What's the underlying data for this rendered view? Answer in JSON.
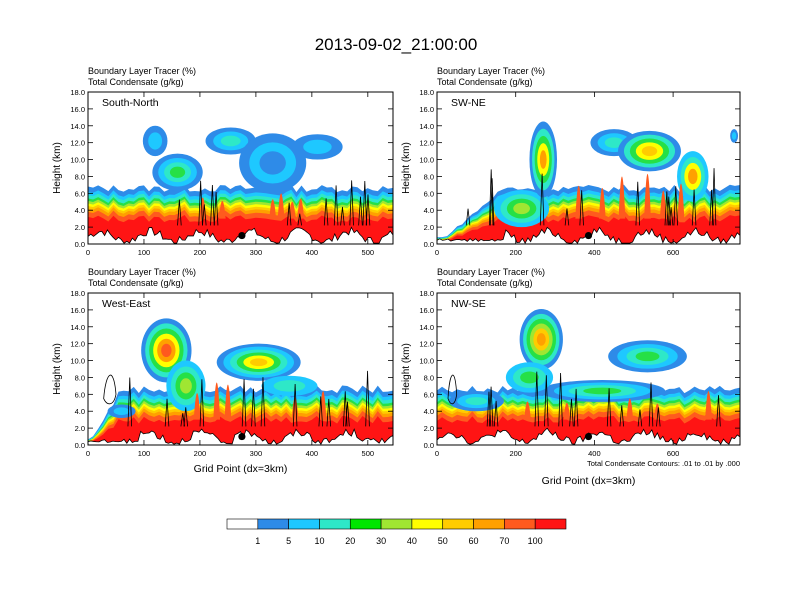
{
  "page_title": "2013-09-02_21:00:00",
  "legend": {
    "colors": [
      "#ffffff",
      "#2e8be8",
      "#1ec8ff",
      "#2ee8c8",
      "#26e046",
      "#00e600",
      "#a0e632",
      "#ffff00",
      "#ffcc00",
      "#ffa000",
      "#ff5a1e",
      "#ff1414"
    ],
    "labels": [
      "1",
      "5",
      "10",
      "20",
      "30",
      "40",
      "50",
      "60",
      "70",
      "100"
    ]
  },
  "chart_data": [
    {
      "type": "heatmap",
      "panel_label": "South-North",
      "title_lines": [
        "Boundary Layer Tracer    (%)",
        "Total Condensate    (g/kg)"
      ],
      "ylabel": "Height (km)",
      "xlabel": "",
      "xlim": [
        0,
        545
      ],
      "ylim": [
        0,
        18
      ],
      "xticks": [
        "0",
        "100",
        "200",
        "300",
        "400",
        "500"
      ],
      "yticks": [
        "0.0",
        "2.0",
        "4.0",
        "6.0",
        "8.0",
        "10.0",
        "12.0",
        "14.0",
        "16.0",
        "18.0"
      ],
      "marker": {
        "x": 275,
        "y": 1.0
      }
    },
    {
      "type": "heatmap",
      "panel_label": "SW-NE",
      "title_lines": [
        "Boundary Layer Tracer    (%)",
        "Total Condensate    (g/kg)"
      ],
      "ylabel": "Height (km)",
      "xlabel": "",
      "xlim": [
        0,
        770
      ],
      "ylim": [
        0,
        18
      ],
      "xticks": [
        "0",
        "200",
        "400",
        "600"
      ],
      "yticks": [
        "0.0",
        "2.0",
        "4.0",
        "6.0",
        "8.0",
        "10.0",
        "12.0",
        "14.0",
        "16.0",
        "18.0"
      ],
      "marker": {
        "x": 385,
        "y": 1.0
      }
    },
    {
      "type": "heatmap",
      "panel_label": "West-East",
      "title_lines": [
        "Boundary Layer Tracer    (%)",
        "Total Condensate    (g/kg)"
      ],
      "ylabel": "Height (km)",
      "xlabel": "Grid Point (dx=3km)",
      "xlim": [
        0,
        545
      ],
      "ylim": [
        0,
        18
      ],
      "xticks": [
        "0",
        "100",
        "200",
        "300",
        "400",
        "500"
      ],
      "yticks": [
        "0.0",
        "2.0",
        "4.0",
        "6.0",
        "8.0",
        "10.0",
        "12.0",
        "14.0",
        "16.0",
        "18.0"
      ],
      "marker": {
        "x": 275,
        "y": 1.0
      }
    },
    {
      "type": "heatmap",
      "panel_label": "NW-SE",
      "title_lines": [
        "Boundary Layer Tracer    (%)",
        "Total Condensate    (g/kg)"
      ],
      "ylabel": "Height (km)",
      "xlabel": "Grid Point (dx=3km)",
      "footnote": "Total Condensate Contours: .01 to .01 by .000",
      "xlim": [
        0,
        770
      ],
      "ylim": [
        0,
        18
      ],
      "xticks": [
        "0",
        "200",
        "400",
        "600"
      ],
      "yticks": [
        "0.0",
        "2.0",
        "4.0",
        "6.0",
        "8.0",
        "10.0",
        "12.0",
        "14.0",
        "16.0",
        "18.0"
      ],
      "marker": {
        "x": 385,
        "y": 1.0
      }
    }
  ]
}
